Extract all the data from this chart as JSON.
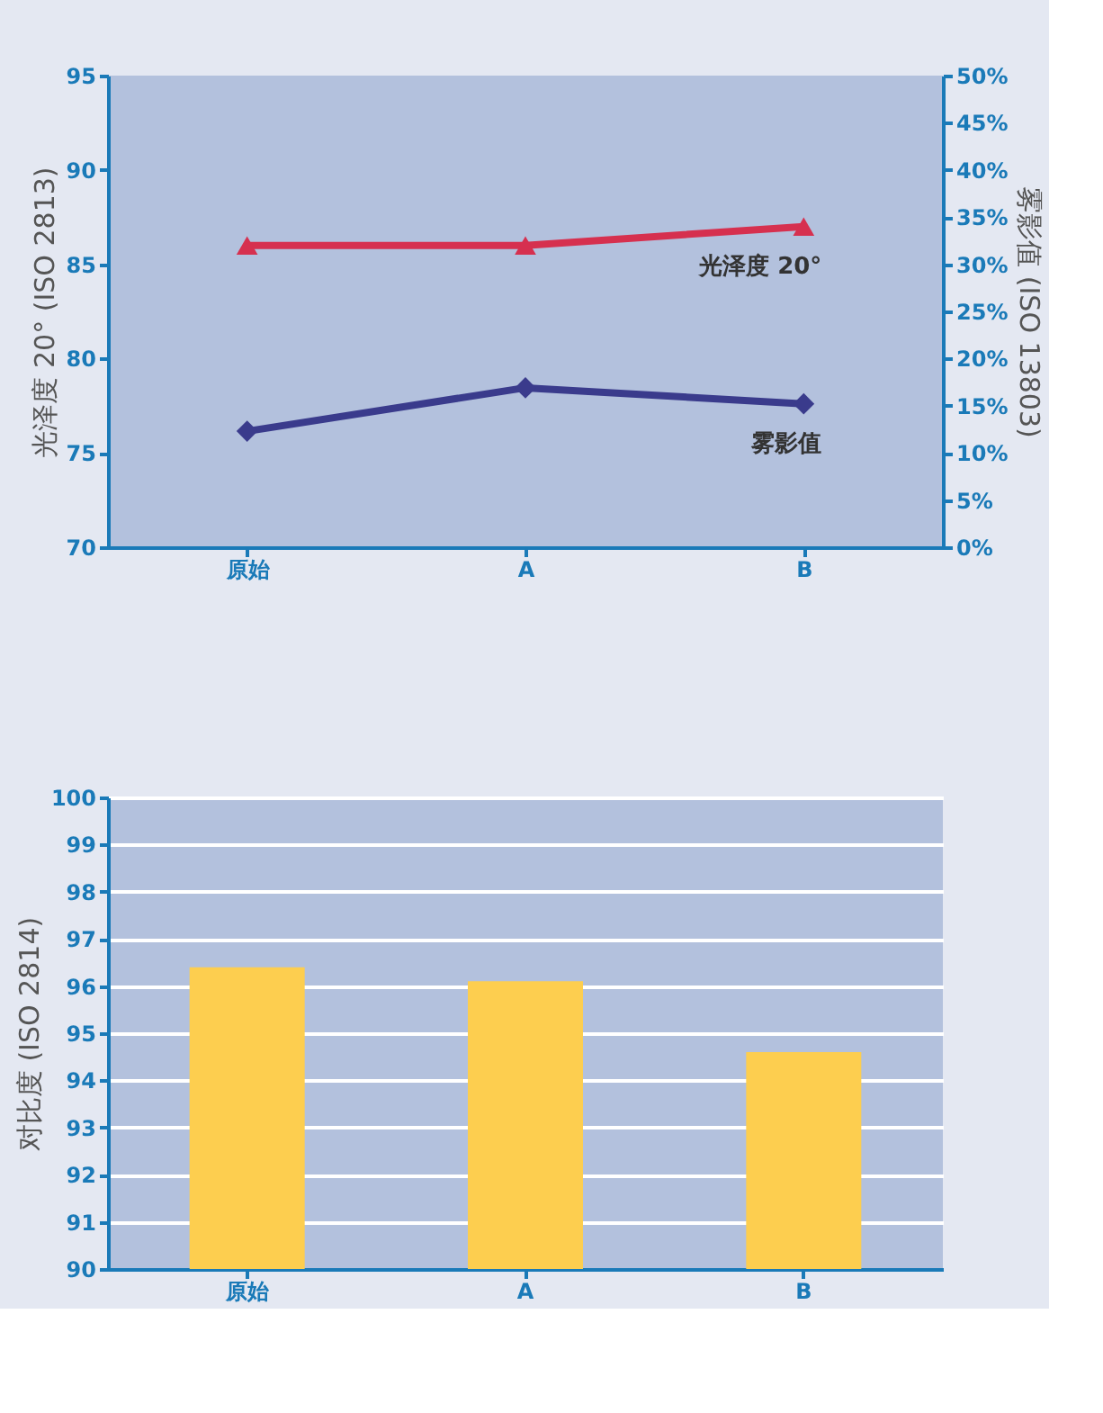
{
  "chart_data": [
    {
      "type": "line",
      "categories": [
        "原始",
        "A",
        "B"
      ],
      "ylabel": "光泽度 20° (ISO 2813)",
      "y2label": "雾影值 (ISO 13803)",
      "ylim": [
        70,
        95
      ],
      "yticks": [
        70,
        75,
        80,
        85,
        90,
        95
      ],
      "y2lim": [
        0,
        50
      ],
      "y2ticks": [
        {
          "value": 0,
          "label": "0%"
        },
        {
          "value": 5,
          "label": "5%"
        },
        {
          "value": 10,
          "label": "10%"
        },
        {
          "value": 15,
          "label": "15%"
        },
        {
          "value": 20,
          "label": "20%"
        },
        {
          "value": 25,
          "label": "25%"
        },
        {
          "value": 30,
          "label": "30%"
        },
        {
          "value": 35,
          "label": "35%"
        },
        {
          "value": 40,
          "label": "40%"
        },
        {
          "value": 45,
          "label": "45%"
        },
        {
          "value": 50,
          "label": "50%"
        }
      ],
      "line_style": "solid",
      "series": [
        {
          "name": "光泽度 20°",
          "color": "#d6304f",
          "marker": "triangle",
          "values": [
            86.0,
            86.0,
            87.0
          ]
        },
        {
          "name": "雾影值",
          "color": "#3a3b8c",
          "marker": "diamond",
          "axis": "y2",
          "values": [
            12.3,
            16.9,
            15.2
          ]
        }
      ]
    },
    {
      "type": "bar",
      "categories": [
        "原始",
        "A",
        "B"
      ],
      "ylabel": "对比度 (ISO 2814)",
      "ylim": [
        90,
        100
      ],
      "yticks": [
        90,
        91,
        92,
        93,
        94,
        95,
        96,
        97,
        98,
        99,
        100
      ],
      "grid": "y",
      "series": [
        {
          "color": "#fdce4f",
          "values": [
            96.4,
            96.1,
            94.6
          ]
        }
      ]
    }
  ]
}
